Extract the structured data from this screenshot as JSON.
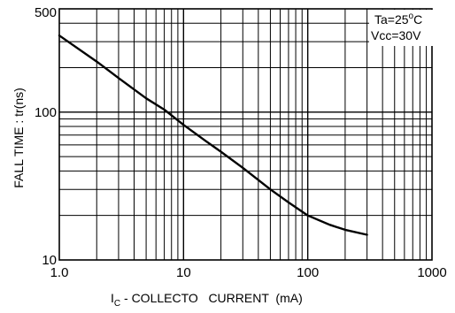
{
  "chart_data": {
    "type": "line",
    "xscale": "log",
    "yscale": "log",
    "xlim": [
      1,
      1000
    ],
    "ylim": [
      10,
      500
    ],
    "grid": true,
    "xlabel_prefix": "I",
    "xlabel_sub": "C",
    "xlabel_rest": " - COLLECTO   CURRENT  (mA)",
    "ylabel": "FALL TIME : tr(ns)",
    "x_ticks": [
      {
        "value": 1,
        "label": "1.0"
      },
      {
        "value": 10,
        "label": "10"
      },
      {
        "value": 100,
        "label": "100"
      },
      {
        "value": 1000,
        "label": "1000"
      }
    ],
    "y_ticks": [
      {
        "value": 10,
        "label": "10"
      },
      {
        "value": 100,
        "label": "100"
      },
      {
        "value": 500,
        "label": "500"
      }
    ],
    "legend": {
      "position": "top-right",
      "line1_prefix": "Ta=25",
      "line1_sup": "o",
      "line1_suffix": "C",
      "line2": "Vcc=30V"
    },
    "series": [
      {
        "x": [
          1,
          2,
          3,
          5,
          7,
          10,
          15,
          20,
          30,
          50,
          70,
          100,
          150,
          200,
          300
        ],
        "y": [
          330,
          220,
          170,
          124,
          104,
          82,
          64,
          54,
          42,
          30,
          24.5,
          20,
          17.3,
          16,
          14.8
        ]
      }
    ]
  }
}
